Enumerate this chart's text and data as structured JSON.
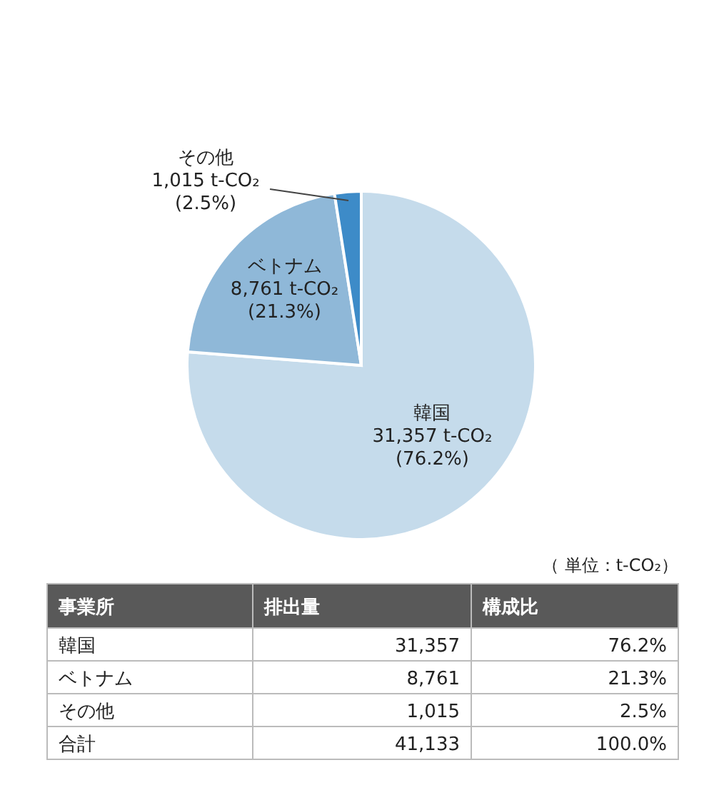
{
  "chart_data": {
    "type": "pie",
    "categories": [
      "韓国",
      "ベトナム",
      "その他"
    ],
    "values": [
      31357,
      8761,
      1015
    ],
    "colors": [
      "#c5dbeb",
      "#8fb8d8",
      "#3d8bc8"
    ],
    "value_labels": [
      "31,357  t-CO₂\n(76.2%)",
      "8,761  t-CO₂\n(21.3%)",
      "1,015  t-CO₂\n(2.5%)"
    ],
    "annotations": [
      "（ 単位：t-CO₂）",
      "事業所",
      "排出量",
      "構成比",
      "韓国",
      "31,357",
      "76.2%",
      "ベトナム",
      "8,761",
      "21.3%",
      "その他",
      "1,015",
      "2.5%",
      "合計",
      "41,133",
      "100.0%"
    ]
  }
}
